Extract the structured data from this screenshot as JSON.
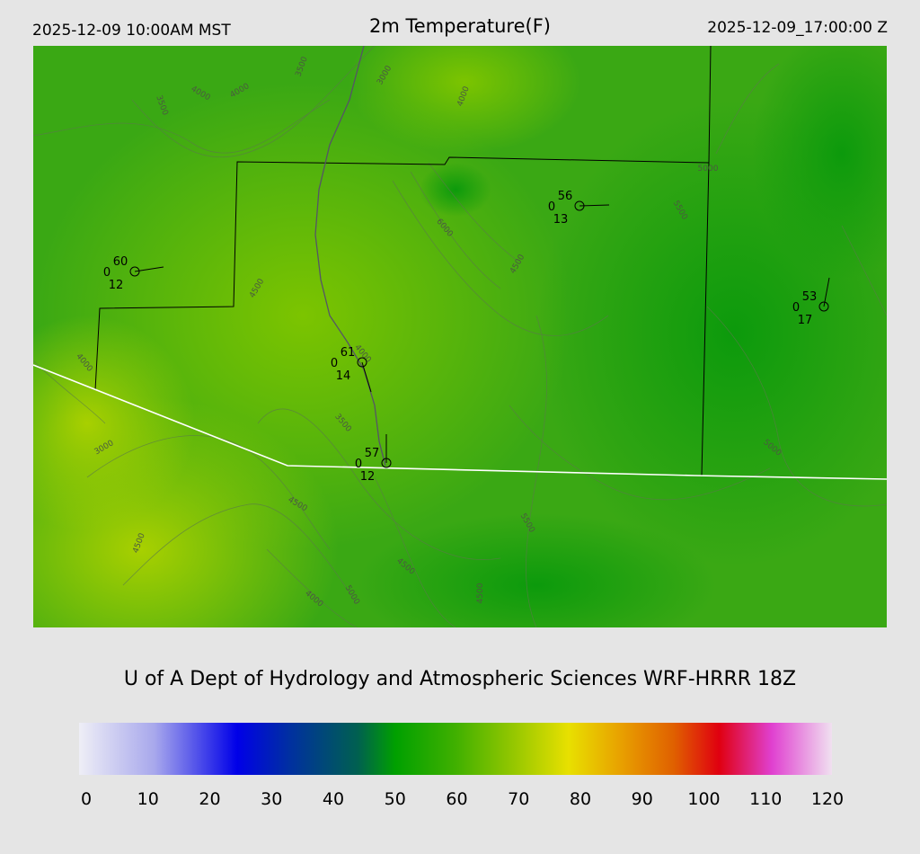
{
  "header": {
    "local_time": "2025-12-09 10:00AM MST",
    "title": "2m Temperature(F)",
    "utc_time": "2025-12-09_17:00:00 Z"
  },
  "map": {
    "contour_labels": [
      "4000",
      "4000",
      "3500",
      "3500",
      "3000",
      "4000",
      "6000",
      "4500",
      "5000",
      "5500",
      "4500",
      "4000",
      "4000",
      "3500",
      "3000",
      "4500",
      "4500",
      "4500",
      "4000",
      "5000",
      "4500",
      "5500",
      "5000"
    ],
    "stations": [
      {
        "temp": "60",
        "left": "0",
        "dew": "12"
      },
      {
        "temp": "56",
        "left": "0",
        "dew": "13"
      },
      {
        "temp": "53",
        "left": "0",
        "dew": "17"
      },
      {
        "temp": "61",
        "left": "0",
        "dew": "14"
      },
      {
        "temp": "57",
        "left": "0",
        "dew": "12"
      }
    ]
  },
  "credit": "U of A Dept of Hydrology and Atmospheric Sciences WRF-HRRR 18Z",
  "colorbar": {
    "ticks": [
      "0",
      "10",
      "20",
      "30",
      "40",
      "50",
      "60",
      "70",
      "80",
      "90",
      "100",
      "110",
      "120"
    ]
  }
}
